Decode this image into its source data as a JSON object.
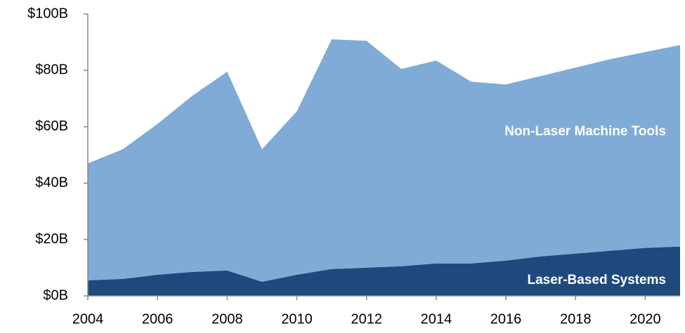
{
  "chart_data": {
    "type": "stacked_area",
    "x": [
      2004,
      2005,
      2006,
      2007,
      2008,
      2009,
      2010,
      2011,
      2012,
      2013,
      2014,
      2015,
      2016,
      2017,
      2018,
      2019,
      2020,
      2021
    ],
    "series": [
      {
        "name": "Laser-Based Systems",
        "color": "#1f497d",
        "values": [
          5.5,
          6,
          7.5,
          8.5,
          9,
          5,
          7.5,
          9.5,
          10,
          10.5,
          11.5,
          11.5,
          12.5,
          14,
          15,
          16,
          17,
          17.5
        ]
      },
      {
        "name": "Non-Laser Machine Tools",
        "color": "#7fabd6",
        "values": [
          41.5,
          46,
          53.5,
          62.5,
          70.5,
          47,
          58,
          81.5,
          80.5,
          70,
          72,
          64.5,
          62.5,
          64,
          66,
          68,
          69.5,
          71.5
        ]
      }
    ],
    "xlim": [
      2004,
      2021
    ],
    "xticks": [
      2004,
      2006,
      2008,
      2010,
      2012,
      2014,
      2016,
      2018,
      2020
    ],
    "ylim": [
      0,
      100
    ],
    "yticks": [
      {
        "value": 0,
        "label": "$0B"
      },
      {
        "value": 20,
        "label": "$20B"
      },
      {
        "value": 40,
        "label": "$40B"
      },
      {
        "value": 60,
        "label": "$60B"
      },
      {
        "value": 80,
        "label": "$80B"
      },
      {
        "value": 100,
        "label": "$100B"
      }
    ]
  }
}
